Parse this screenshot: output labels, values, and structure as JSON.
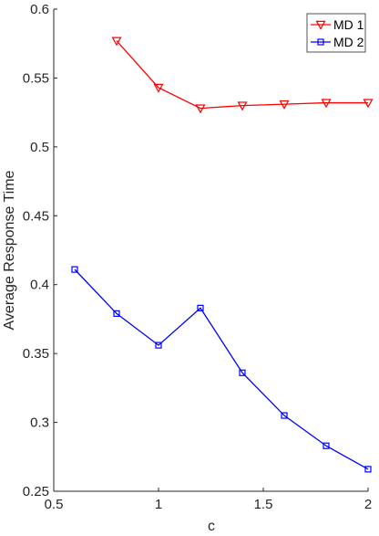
{
  "chart_data": {
    "type": "line",
    "title": "",
    "xlabel": "c",
    "ylabel": "Average Response Time",
    "xlim": [
      0.5,
      2
    ],
    "ylim": [
      0.25,
      0.6
    ],
    "xticks": [
      0.5,
      1,
      1.5,
      2
    ],
    "xtick_labels": [
      "0.5",
      "1",
      "1.5",
      "2"
    ],
    "yticks": [
      0.25,
      0.3,
      0.35,
      0.4,
      0.45,
      0.5,
      0.55,
      0.6
    ],
    "ytick_labels": [
      "0.25",
      "0.3",
      "0.35",
      "0.4",
      "0.45",
      "0.5",
      "0.55",
      "0.6"
    ],
    "grid": false,
    "legend_position": "top-right",
    "series": [
      {
        "name": "MD 1",
        "color": "#ff0000",
        "marker": "triangle-down",
        "x": [
          0.8,
          1.0,
          1.2,
          1.4,
          1.6,
          1.8,
          2.0
        ],
        "y": [
          0.577,
          0.543,
          0.528,
          0.53,
          0.531,
          0.532,
          0.532
        ]
      },
      {
        "name": "MD 2",
        "color": "#0000ff",
        "marker": "square",
        "x": [
          0.6,
          0.8,
          1.0,
          1.2,
          1.4,
          1.6,
          1.8,
          2.0
        ],
        "y": [
          0.411,
          0.379,
          0.356,
          0.383,
          0.336,
          0.305,
          0.283,
          0.266
        ]
      }
    ]
  }
}
